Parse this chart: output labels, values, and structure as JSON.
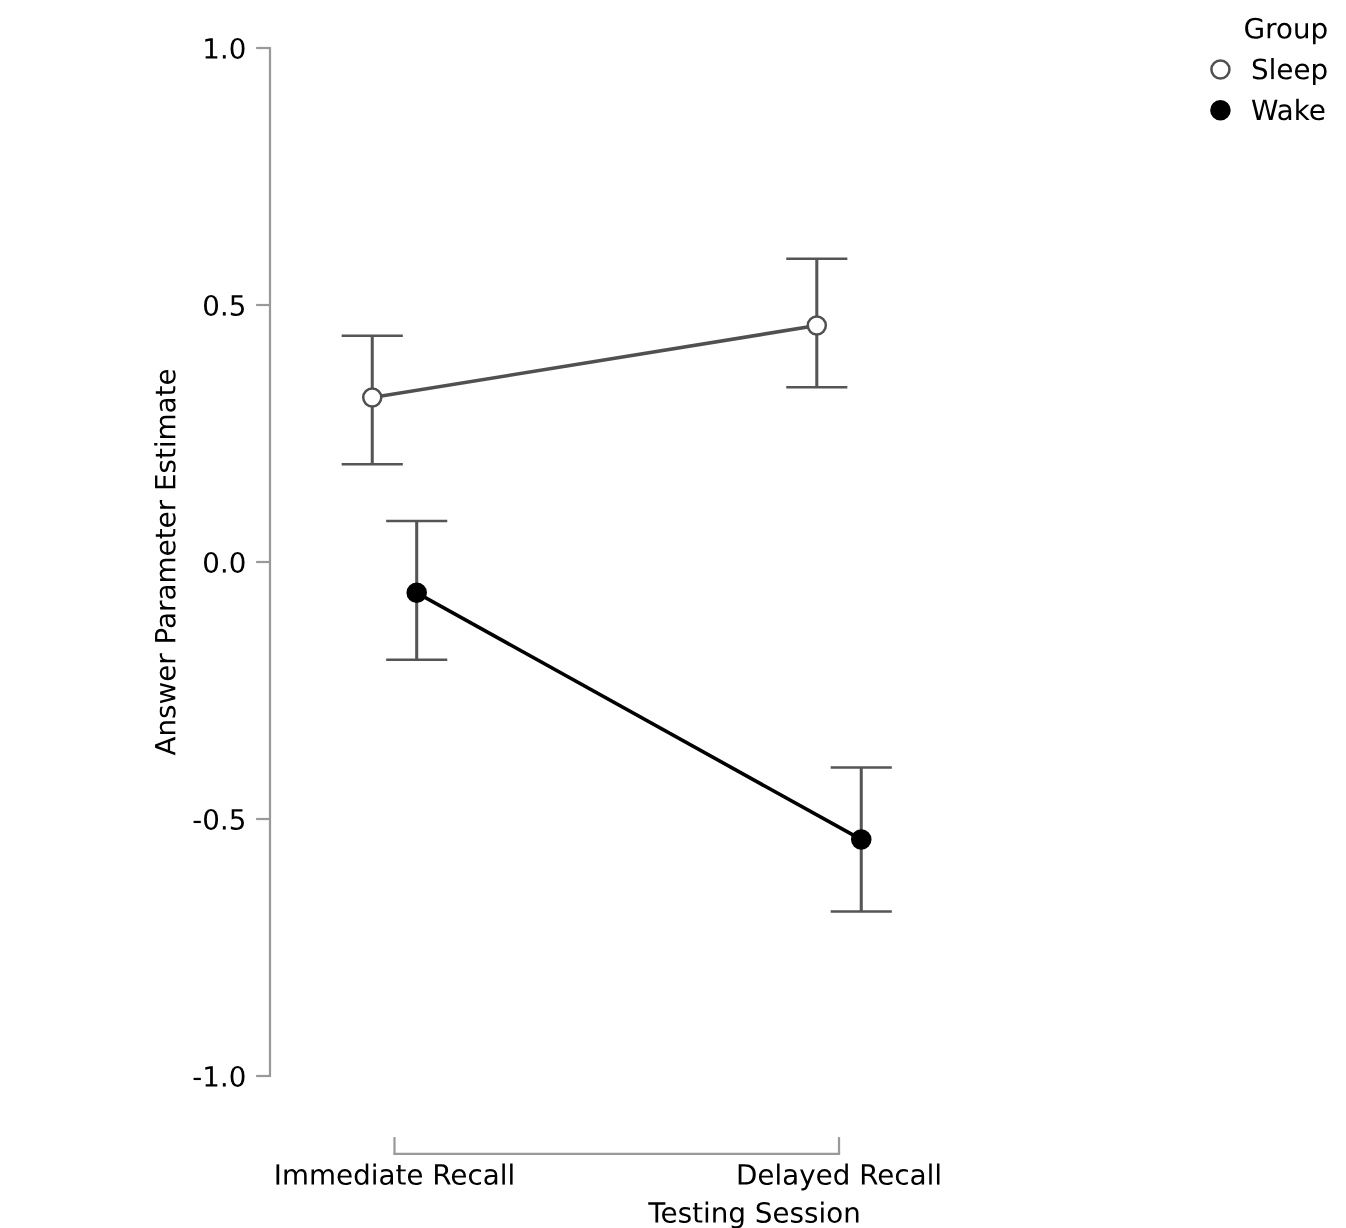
{
  "chart_data": {
    "type": "line",
    "xlabel": "Testing Session",
    "ylabel": "Answer Parameter Estimate",
    "legend_title": "Group",
    "legend": "top right",
    "marker": "circle",
    "line_style": "solid",
    "grid": false,
    "categories": [
      "Immediate Recall",
      "Delayed Recall"
    ],
    "ylim": [
      -1.0,
      1.0
    ],
    "yticks": [
      {
        "value": -1.0,
        "label": "-1.0"
      },
      {
        "value": -0.5,
        "label": "-0.5"
      },
      {
        "value": 0.0,
        "label": "0.0"
      },
      {
        "value": 0.5,
        "label": "0.5"
      },
      {
        "value": 1.0,
        "label": "1.0"
      }
    ],
    "series": [
      {
        "name": "Sleep",
        "color": "#505050",
        "values": [
          0.32,
          0.46
        ],
        "errors": [
          [
            0.19,
            0.44
          ],
          [
            0.34,
            0.59
          ]
        ]
      },
      {
        "name": "Wake",
        "color": "#000000",
        "values": [
          -0.06,
          -0.54
        ],
        "errors": [
          [
            -0.19,
            0.08
          ],
          [
            -0.68,
            -0.4
          ]
        ]
      }
    ]
  }
}
